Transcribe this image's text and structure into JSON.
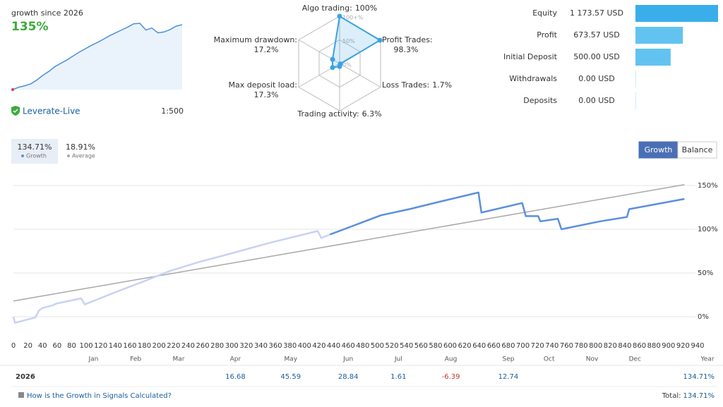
{
  "account": {
    "broker": "Leverate-Live",
    "leverage": "1:500"
  },
  "chart_data": [
    {
      "type": "sparkline",
      "title": "growth since 2026",
      "value_label": "135%",
      "color": "#4a90d9",
      "values": [
        0,
        5,
        8,
        12,
        20,
        30,
        38,
        48,
        55,
        62,
        70,
        78,
        85,
        92,
        98,
        105,
        112,
        118,
        124,
        130,
        137,
        138,
        124,
        128,
        118,
        120,
        125,
        132,
        135
      ]
    },
    {
      "type": "radar",
      "categories": [
        "Algo trading:",
        "Profit Trades:",
        "Loss Trades:",
        "Trading activity:",
        "Max deposit load:",
        "Maximum drawdown:"
      ],
      "values": [
        100,
        98.3,
        1.7,
        6.3,
        17.3,
        17.2
      ],
      "value_labels": [
        "100%",
        "98.3%",
        "1.7%",
        "6.3%",
        "17.3%",
        "17.2%"
      ],
      "rlim": [
        0,
        100
      ],
      "rticks": [
        {
          "value": 0,
          "label": "0%"
        },
        {
          "value": 50,
          "label": "50%"
        },
        {
          "value": 100,
          "label": "100+%"
        }
      ],
      "color": "#3aa3e3"
    },
    {
      "type": "hbar",
      "categories": [
        "Equity",
        "Profit",
        "Initial Deposit",
        "Withdrawals",
        "Deposits"
      ],
      "values": [
        1173.57,
        673.57,
        500,
        0,
        0
      ],
      "value_labels": [
        "1 173.57 USD",
        "673.57 USD",
        "500.00 USD",
        "0.00 USD",
        "0.00 USD"
      ],
      "colors": [
        "#3aaeea",
        "#62c3f1",
        "#62c3f1",
        "#62c3f1",
        "#62c3f1"
      ]
    },
    {
      "type": "line",
      "x_label": "Year",
      "grid": true,
      "xlim": [
        0,
        940
      ],
      "xticks": [
        0,
        20,
        40,
        60,
        80,
        100,
        120,
        140,
        160,
        180,
        200,
        220,
        240,
        260,
        280,
        300,
        320,
        340,
        360,
        380,
        400,
        420,
        440,
        460,
        480,
        500,
        520,
        540,
        560,
        580,
        600,
        620,
        640,
        660,
        680,
        700,
        720,
        740,
        760,
        780,
        800,
        820,
        840,
        860,
        880,
        900,
        920,
        940
      ],
      "ylim": [
        -15,
        165
      ],
      "yticks": [
        {
          "value": 0,
          "label": "0%"
        },
        {
          "value": 50,
          "label": "50%"
        },
        {
          "value": 100,
          "label": "100%"
        },
        {
          "value": 150,
          "label": "150%"
        }
      ],
      "months": {
        "labels": [
          "Jan",
          "Feb",
          "Mar",
          "Apr",
          "May",
          "Jun",
          "Jul",
          "Aug",
          "Sep",
          "Oct",
          "Nov",
          "Dec"
        ],
        "x": [
          110,
          168,
          227,
          305,
          381,
          460,
          529,
          601,
          680,
          736,
          795,
          854
        ]
      },
      "series": [
        {
          "color": "#c8d2f2",
          "x": [
            0,
            2,
            30,
            35,
            40,
            54,
            59,
            93,
            98,
            137,
            175,
            214,
            253,
            302,
            350,
            389,
            418,
            423,
            435
          ],
          "values": [
            0,
            -7,
            -1,
            7,
            10,
            13,
            15,
            21,
            14,
            27,
            39,
            52,
            62,
            73,
            84,
            92,
            98,
            90,
            94
          ]
        },
        {
          "name": "Growth",
          "summary": "134.71%",
          "color": "#5b8fde",
          "x": [
            435,
            467,
            505,
            544,
            583,
            639,
            643,
            699,
            704,
            721,
            724,
            748,
            753,
            806,
            843,
            846,
            922
          ],
          "values": [
            94,
            104,
            116,
            123,
            131,
            142,
            119,
            130,
            115,
            115,
            109,
            112,
            100,
            109,
            114,
            123,
            134.7
          ]
        },
        {
          "name": "Average",
          "summary": "18.91%",
          "color": "#a8a8a8",
          "x": [
            0,
            922
          ],
          "values": [
            18,
            151
          ]
        }
      ]
    }
  ],
  "toggle": [
    "Growth",
    "Balance"
  ],
  "table": {
    "year": "2026",
    "values": [
      null,
      null,
      null,
      16.68,
      45.59,
      28.84,
      1.61,
      -6.39,
      12.74,
      null,
      null,
      null
    ],
    "total": "134.71%"
  },
  "footer": {
    "link": "How is the Growth in Signals Calculated?",
    "total_label": "Total:",
    "total": "134.71%"
  }
}
